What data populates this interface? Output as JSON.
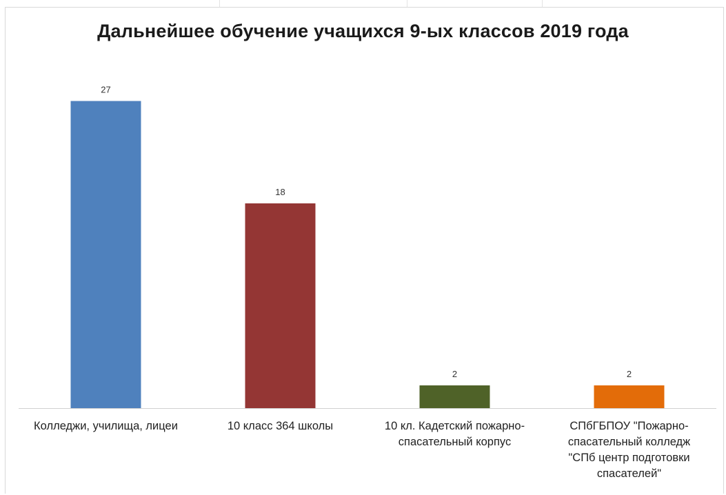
{
  "chart_data": {
    "type": "bar",
    "title": "Дальнейшее обучение учащихся 9-ых классов 2019 года",
    "categories": [
      "Колледжи, училища, лицеи",
      "10 класс 364 школы",
      "10 кл. Кадетский пожарно-спасательный корпус",
      "СПбГБПОУ \"Пожарно-спасательный колледж \"СПб центр подготовки спасателей\""
    ],
    "category_lines": [
      [
        "Колледжи, училища, лицеи"
      ],
      [
        "10 класс 364 школы"
      ],
      [
        "10 кл. Кадетский пожарно-",
        "спасательный корпус"
      ],
      [
        "СПбГБПОУ \"Пожарно-",
        "спасательный колледж",
        "\"СПб центр подготовки",
        "спасателей\""
      ]
    ],
    "values": [
      27,
      18,
      2,
      2
    ],
    "colors": [
      "#4f81bd",
      "#943634",
      "#4f6228",
      "#e36c09"
    ],
    "xlabel": "",
    "ylabel": "",
    "ylim": [
      0,
      30
    ],
    "grid": false,
    "legend": "none",
    "data_labels": true
  }
}
